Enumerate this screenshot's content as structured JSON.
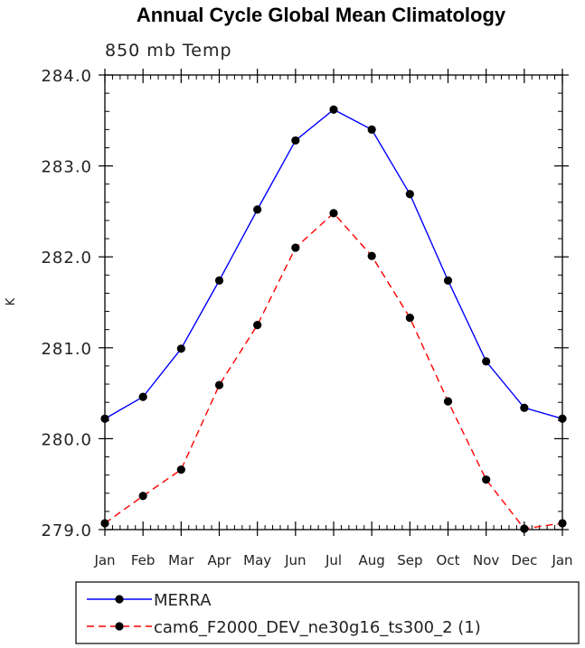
{
  "title": "Annual Cycle Global Mean Climatology",
  "subtitle": "850 mb Temp",
  "chart_data": {
    "type": "line",
    "title": "Annual Cycle Global Mean Climatology",
    "subtitle": "850 mb Temp",
    "xlabel": "",
    "ylabel": "K",
    "categories": [
      "Jan",
      "Feb",
      "Mar",
      "Apr",
      "May",
      "Jun",
      "Jul",
      "Aug",
      "Sep",
      "Oct",
      "Nov",
      "Dec",
      "Jan"
    ],
    "ylim": [
      279.0,
      284.0
    ],
    "yticks": [
      "279.0",
      "280.0",
      "281.0",
      "282.0",
      "283.0",
      "284.0"
    ],
    "series": [
      {
        "name": "MERRA",
        "color": "#0000ff",
        "line_style": "solid",
        "marker": "filled-circle",
        "values": [
          280.22,
          280.46,
          280.99,
          281.74,
          282.52,
          283.28,
          283.62,
          283.4,
          282.69,
          281.74,
          280.85,
          280.34,
          280.22
        ]
      },
      {
        "name": "cam6_F2000_DEV_ne30g16_ts300_2 (1)",
        "color": "#ff0000",
        "line_style": "dashed",
        "marker": "filled-circle",
        "values": [
          279.07,
          279.37,
          279.66,
          280.59,
          281.25,
          282.1,
          282.48,
          282.01,
          281.33,
          280.41,
          279.55,
          279.01,
          279.07
        ]
      }
    ],
    "grid": false,
    "legend_position": "bottom-left"
  }
}
